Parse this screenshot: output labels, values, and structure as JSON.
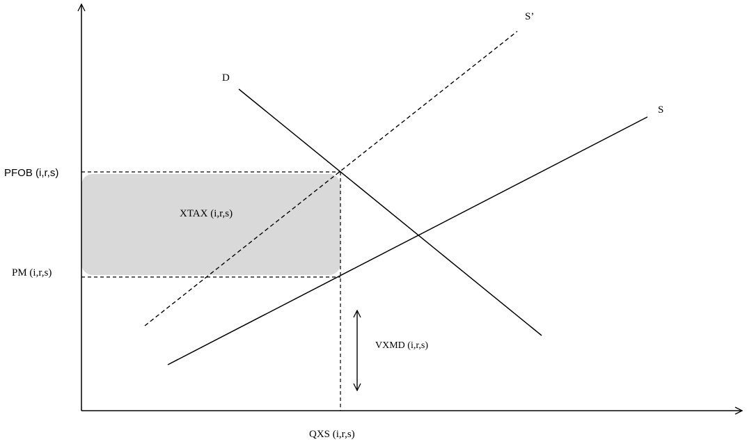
{
  "diagram": {
    "curves": {
      "demand_label": "D",
      "supply_label": "S",
      "supply_shifted_label": "S’"
    },
    "prices": {
      "pfob_label": "PFOB (i,r,s)",
      "pm_label": "PM (i,r,s)"
    },
    "quantity": {
      "qxs_label": "QXS (i,r,s)"
    },
    "areas": {
      "tax_label": "XTAX (i,r,s)",
      "tax_fill": "#d9d9d9"
    },
    "annotations": {
      "vxmd_label": "VXMD (i,r,s)"
    },
    "colors": {
      "line": "#000000"
    }
  }
}
